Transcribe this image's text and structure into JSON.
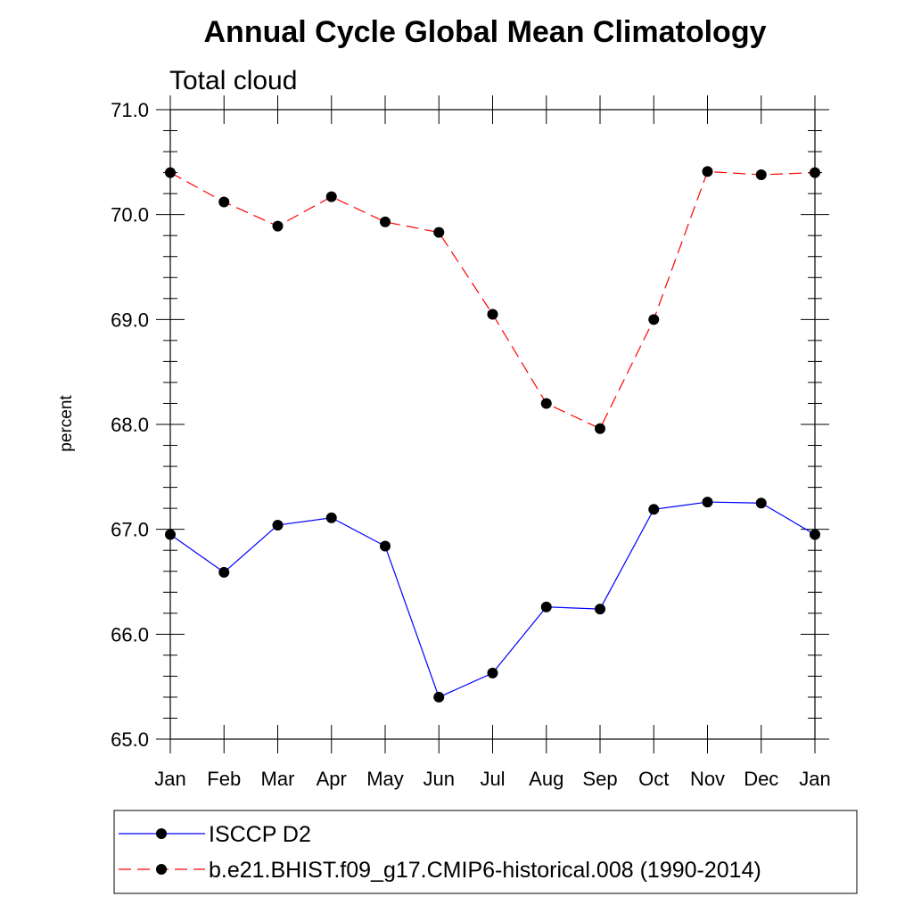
{
  "chart_data": {
    "type": "line",
    "title": "Annual Cycle Global Mean Climatology",
    "subtitle": "Total cloud",
    "ylabel": "percent",
    "xlabel": "",
    "categories": [
      "Jan",
      "Feb",
      "Mar",
      "Apr",
      "May",
      "Jun",
      "Jul",
      "Aug",
      "Sep",
      "Oct",
      "Nov",
      "Dec",
      "Jan"
    ],
    "ylim": [
      65.0,
      71.0
    ],
    "yticks": [
      "65.0",
      "66.0",
      "67.0",
      "68.0",
      "69.0",
      "70.0",
      "71.0"
    ],
    "grid": false,
    "legend_position": "bottom",
    "series": [
      {
        "name": "ISCCP D2",
        "color": "#0000ff",
        "style": "solid",
        "values": [
          66.95,
          66.59,
          67.04,
          67.11,
          66.84,
          65.4,
          65.63,
          66.26,
          66.24,
          67.19,
          67.26,
          67.25,
          66.95
        ]
      },
      {
        "name": "b.e21.BHIST.f09_g17.CMIP6-historical.008 (1990-2014)",
        "color": "#ff0000",
        "style": "dashed",
        "values": [
          70.4,
          70.12,
          69.89,
          70.17,
          69.93,
          69.83,
          69.05,
          68.2,
          67.96,
          69.0,
          70.41,
          70.38,
          70.4
        ]
      }
    ]
  }
}
